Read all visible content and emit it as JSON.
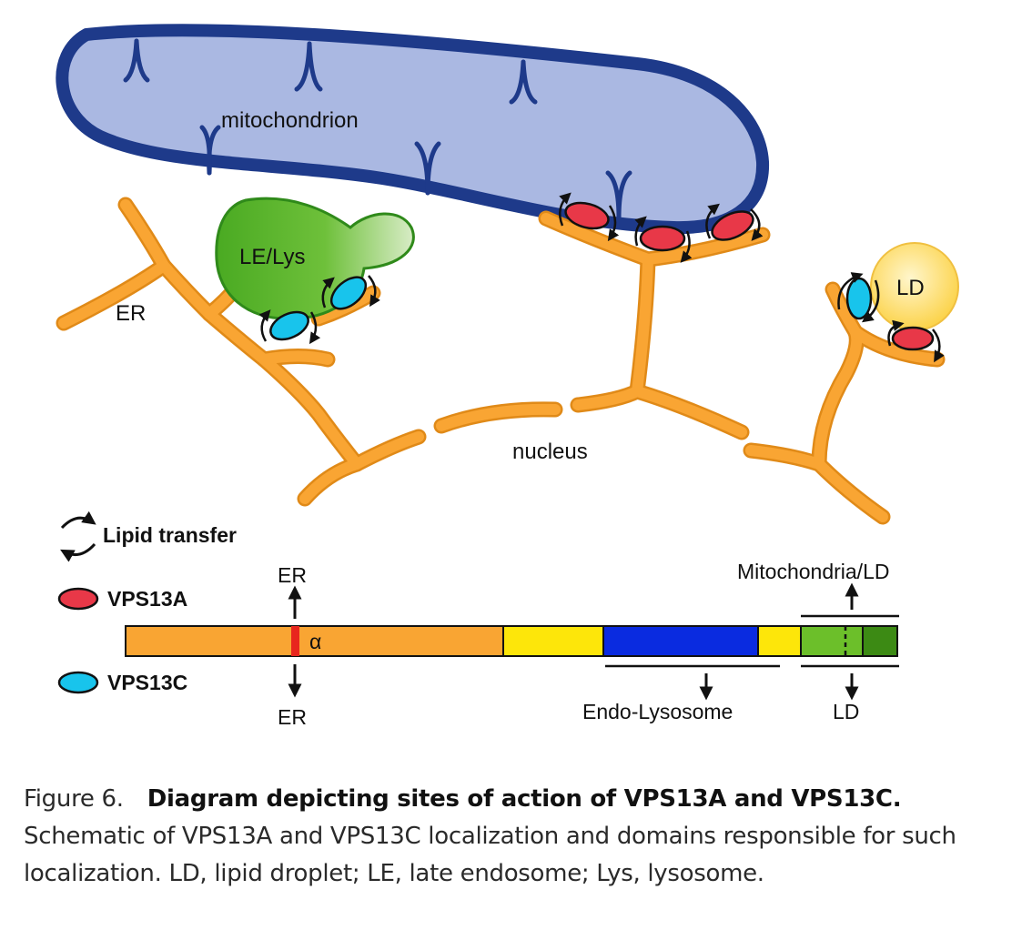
{
  "diagram": {
    "labels": {
      "mitochondrion": "mitochondrion",
      "le_lys": "LE/Lys",
      "er": "ER",
      "ld": "LD",
      "nucleus": "nucleus"
    },
    "legend": {
      "lipid_transfer": "Lipid transfer",
      "vps13a": "VPS13A",
      "vps13c": "VPS13C"
    },
    "domain_bar": {
      "er_top": "ER",
      "er_bottom": "ER",
      "alpha": "α",
      "mito_ld": "Mitochondria/LD",
      "endo_lysosome": "Endo-Lysosome",
      "ld_bottom": "LD"
    },
    "colors": {
      "er": "#f9a533",
      "mitochondrion_outer": "#1e3a8a",
      "mitochondrion_inner": "#aab8e2",
      "le_lys": "#5cb82e",
      "ld": "#fbd84a",
      "vps13a": "#e83848",
      "vps13c": "#18c4ec",
      "bar_orange": "#f9a533",
      "bar_yellow": "#fde60a",
      "bar_blue": "#0a2be0",
      "bar_green_light": "#6cbf2a",
      "bar_green_dark": "#3c8a14",
      "alpha_helix": "#e8261e"
    }
  },
  "caption": {
    "figure_number": "Figure 6.",
    "title": "Diagram depicting sites of action of VPS13A and VPS13C.",
    "text": "Schematic of VPS13A and VPS13C localization and domains responsible for such localization. LD, lipid droplet; LE, late endosome; Lys, lysosome."
  }
}
